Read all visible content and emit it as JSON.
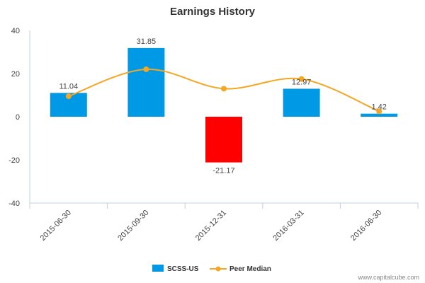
{
  "chart_data": {
    "type": "bar",
    "title": "Earnings History",
    "categories": [
      "2015-06-30",
      "2015-09-30",
      "2015-12-31",
      "2016-03-31",
      "2016-06-30"
    ],
    "series": [
      {
        "name": "SCSS-US",
        "kind": "bar",
        "values": [
          11.04,
          31.85,
          -21.17,
          12.97,
          1.42
        ],
        "color": "#0099e6",
        "negative_color": "#ff0000",
        "labels": [
          "11.04",
          "31.85",
          "-21.17",
          "12.97",
          "1.42"
        ]
      },
      {
        "name": "Peer Median",
        "kind": "line",
        "values": [
          9.5,
          22,
          13,
          17.5,
          2.5
        ],
        "color": "#f5a623"
      }
    ],
    "y_ticks": [
      40,
      20,
      0,
      -20,
      -40
    ],
    "ylim": [
      -40,
      40
    ],
    "xlabel": "",
    "ylabel": "",
    "legend_position": "bottom-center"
  },
  "credit": "www.capitalcube.com",
  "colors": {
    "axis": "#c0d0e0",
    "text": "#444444",
    "title": "#333333"
  }
}
